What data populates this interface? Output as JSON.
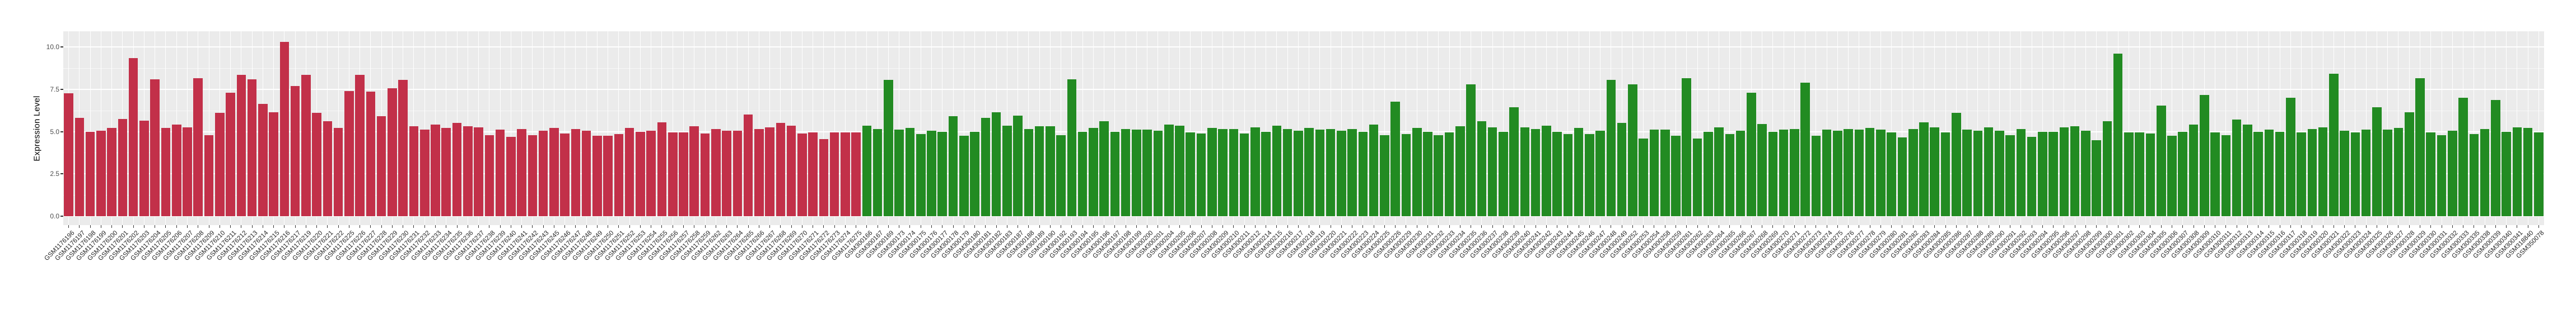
{
  "chart_data": {
    "type": "bar",
    "title": "",
    "xlabel": "",
    "ylabel": "Expression Level",
    "yticks": [
      "0.0",
      "2.5",
      "5.0",
      "7.5",
      "10.0"
    ],
    "ytick_values": [
      0,
      2.5,
      5,
      7.5,
      10
    ],
    "minor_ticks": [
      1.25,
      3.75,
      6.25,
      8.75
    ],
    "ylim": [
      -0.52,
      10.92
    ],
    "grid": true,
    "legend": "none",
    "panel_bg": "#EBEBEB",
    "gridline_color": "#FFFFFF",
    "tick_color": "#333333",
    "group_split_index": 74,
    "groups": [
      {
        "name": "group-1-red",
        "color": "#C23049",
        "count": 74
      },
      {
        "name": "group-2-green",
        "color": "#228B22",
        "count": 156
      }
    ],
    "categories": [
      "GSM1176196",
      "GSM1176197",
      "GSM1176198",
      "GSM1176199",
      "GSM1176200",
      "GSM1176201",
      "GSM1176202",
      "GSM1176203",
      "GSM1176204",
      "GSM1176205",
      "GSM1176206",
      "GSM1176207",
      "GSM1176208",
      "GSM1176209",
      "GSM1176210",
      "GSM1176211",
      "GSM1176212",
      "GSM1176213",
      "GSM1176214",
      "GSM1176215",
      "GSM1176216",
      "GSM1176217",
      "GSM1176219",
      "GSM1176220",
      "GSM1176221",
      "GSM1176222",
      "GSM1176225",
      "GSM1176226",
      "GSM1176227",
      "GSM1176228",
      "GSM1176229",
      "GSM1176230",
      "GSM1176231",
      "GSM1176232",
      "GSM1176233",
      "GSM1176234",
      "GSM1176235",
      "GSM1176236",
      "GSM1176237",
      "GSM1176238",
      "GSM1176239",
      "GSM1176240",
      "GSM1176241",
      "GSM1176242",
      "GSM1176243",
      "GSM1176245",
      "GSM1176246",
      "GSM1176247",
      "GSM1176248",
      "GSM1176249",
      "GSM1176250",
      "GSM1176251",
      "GSM1176252",
      "GSM1176253",
      "GSM1176254",
      "GSM1176255",
      "GSM1176256",
      "GSM1176257",
      "GSM1176258",
      "GSM1176259",
      "GSM1176262",
      "GSM1176263",
      "GSM1176264",
      "GSM1176265",
      "GSM1176266",
      "GSM1176267",
      "GSM1176268",
      "GSM1176269",
      "GSM1176270",
      "GSM1176271",
      "GSM1176272",
      "GSM1176273",
      "GSM1176274",
      "GSM1176275",
      "GSM300166",
      "GSM300167",
      "GSM300169",
      "GSM300173",
      "GSM300174",
      "GSM300175",
      "GSM300176",
      "GSM300177",
      "GSM300178",
      "GSM300179",
      "GSM300180",
      "GSM300181",
      "GSM300182",
      "GSM300183",
      "GSM300187",
      "GSM300188",
      "GSM300189",
      "GSM300190",
      "GSM300192",
      "GSM300193",
      "GSM300194",
      "GSM300195",
      "GSM300196",
      "GSM300197",
      "GSM300198",
      "GSM300199",
      "GSM300200",
      "GSM300201",
      "GSM300204",
      "GSM300205",
      "GSM300206",
      "GSM300207",
      "GSM300208",
      "GSM300209",
      "GSM300210",
      "GSM300211",
      "GSM300212",
      "GSM300214",
      "GSM300215",
      "GSM300216",
      "GSM300217",
      "GSM300218",
      "GSM300219",
      "GSM300220",
      "GSM300221",
      "GSM300222",
      "GSM300223",
      "GSM300224",
      "GSM300225",
      "GSM300226",
      "GSM300229",
      "GSM300230",
      "GSM300231",
      "GSM300232",
      "GSM300233",
      "GSM300234",
      "GSM300235",
      "GSM300236",
      "GSM300237",
      "GSM300238",
      "GSM300239",
      "GSM300240",
      "GSM300241",
      "GSM300242",
      "GSM300243",
      "GSM300244",
      "GSM300245",
      "GSM300246",
      "GSM300247",
      "GSM300248",
      "GSM300249",
      "GSM300252",
      "GSM300253",
      "GSM300254",
      "GSM300258",
      "GSM300259",
      "GSM300261",
      "GSM300262",
      "GSM300263",
      "GSM300264",
      "GSM300265",
      "GSM300266",
      "GSM300267",
      "GSM300268",
      "GSM300269",
      "GSM300270",
      "GSM300271",
      "GSM300272",
      "GSM300273",
      "GSM300274",
      "GSM300275",
      "GSM300276",
      "GSM300277",
      "GSM300278",
      "GSM300279",
      "GSM300280",
      "GSM300281",
      "GSM300282",
      "GSM300283",
      "GSM300284",
      "GSM300285",
      "GSM300286",
      "GSM300287",
      "GSM300288",
      "GSM300289",
      "GSM300290",
      "GSM300291",
      "GSM300292",
      "GSM300293",
      "GSM300294",
      "GSM300295",
      "GSM300296",
      "GSM300297",
      "GSM300298",
      "GSM300299",
      "GSM300300",
      "GSM300301",
      "GSM300302",
      "GSM300303",
      "GSM300304",
      "GSM300305",
      "GSM300306",
      "GSM300307",
      "GSM300308",
      "GSM300309",
      "GSM300310",
      "GSM300311",
      "GSM300312",
      "GSM300313",
      "GSM300314",
      "GSM300315",
      "GSM300316",
      "GSM300317",
      "GSM300318",
      "GSM300319",
      "GSM300320",
      "GSM300321",
      "GSM300322",
      "GSM300323",
      "GSM300324",
      "GSM300325",
      "GSM300326",
      "GSM300327",
      "GSM300328",
      "GSM300329",
      "GSM300330",
      "GSM300331",
      "GSM300332",
      "GSM300333",
      "GSM300335",
      "GSM300338",
      "GSM300339",
      "GSM300340",
      "GSM300341",
      "GSM318840",
      "GSM350078"
    ],
    "values": [
      7.25,
      5.8,
      5.0,
      5.05,
      5.2,
      5.75,
      9.35,
      5.65,
      8.1,
      5.2,
      5.4,
      5.25,
      8.15,
      4.8,
      6.1,
      7.3,
      8.35,
      8.1,
      6.65,
      6.15,
      10.3,
      7.7,
      8.35,
      6.1,
      5.6,
      5.2,
      7.4,
      8.35,
      7.35,
      5.9,
      7.55,
      8.05,
      5.3,
      5.1,
      5.4,
      5.2,
      5.5,
      5.3,
      5.25,
      4.8,
      5.1,
      4.7,
      5.15,
      4.8,
      5.05,
      5.2,
      4.9,
      5.15,
      5.05,
      4.75,
      4.75,
      4.85,
      5.2,
      5.0,
      5.05,
      5.55,
      4.95,
      4.95,
      5.3,
      4.9,
      5.15,
      5.05,
      5.05,
      6.0,
      5.15,
      5.25,
      5.5,
      5.35,
      4.9,
      4.95,
      4.55,
      4.95,
      4.95,
      4.95,
      5.35,
      5.15,
      8.05,
      5.1,
      5.2,
      4.85,
      5.05,
      5.0,
      5.9,
      4.75,
      5.0,
      5.8,
      6.15,
      5.35,
      5.95,
      5.15,
      5.3,
      5.3,
      4.8,
      8.1,
      5.0,
      5.2,
      5.6,
      5.0,
      5.15,
      5.1,
      5.1,
      5.05,
      5.4,
      5.35,
      4.95,
      4.9,
      5.2,
      5.15,
      5.15,
      4.9,
      5.25,
      5.0,
      5.35,
      5.15,
      5.05,
      5.2,
      5.1,
      5.15,
      5.05,
      5.15,
      5.0,
      5.4,
      4.8,
      6.75,
      4.85,
      5.2,
      5.0,
      4.8,
      4.95,
      5.3,
      7.8,
      5.6,
      5.25,
      5.0,
      6.45,
      5.25,
      5.15,
      5.35,
      5.0,
      4.85,
      5.2,
      4.85,
      5.05,
      8.05,
      5.5,
      7.8,
      4.6,
      5.1,
      5.1,
      4.75,
      8.15,
      4.6,
      5.0,
      5.25,
      4.85,
      5.05,
      7.3,
      5.45,
      5.0,
      5.1,
      5.15,
      7.9,
      4.75,
      5.1,
      5.05,
      5.15,
      5.1,
      5.2,
      5.1,
      4.95,
      4.65,
      5.15,
      5.55,
      5.25,
      4.95,
      6.1,
      5.1,
      5.05,
      5.25,
      5.05,
      4.8,
      5.15,
      4.7,
      5.0,
      5.0,
      5.25,
      5.3,
      5.05,
      4.5,
      5.6,
      9.6,
      4.95,
      4.95,
      4.9,
      6.55,
      4.75,
      5.0,
      5.4,
      7.15,
      4.95,
      4.8,
      5.7,
      5.4,
      5.0,
      5.1,
      5.0,
      7.0,
      4.95,
      5.15,
      5.25,
      8.4,
      5.05,
      4.95,
      5.1,
      6.45,
      5.1,
      5.2,
      6.15,
      8.15,
      4.95,
      4.8,
      5.05,
      7.0,
      4.85,
      5.15,
      6.85,
      5.0,
      5.25,
      5.2,
      4.95
    ]
  }
}
